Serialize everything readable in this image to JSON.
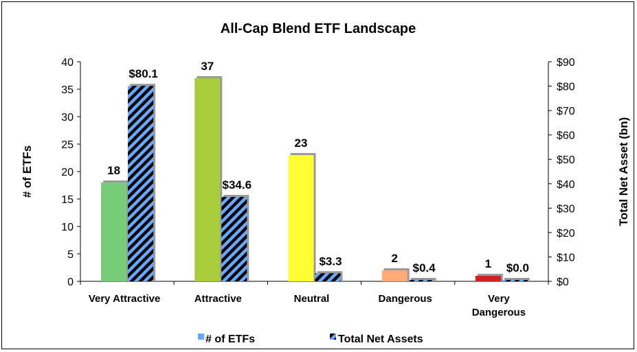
{
  "chart_data": {
    "type": "bar",
    "title": "All-Cap Blend ETF Landscape",
    "ylabel": "# of ETFs",
    "y2label": "Total Net Asset (bn)",
    "ylim": [
      0,
      40
    ],
    "y2lim": [
      0,
      90
    ],
    "yticks": [
      "0",
      "5",
      "10",
      "15",
      "20",
      "25",
      "30",
      "35",
      "40"
    ],
    "y2ticks": [
      "$0",
      "$10",
      "$20",
      "$30",
      "$40",
      "$50",
      "$60",
      "$70",
      "$80",
      "$90"
    ],
    "categories": [
      [
        "Very Attractive"
      ],
      [
        "Attractive"
      ],
      [
        "Neutral"
      ],
      [
        "Dangerous"
      ],
      [
        "Very",
        "Dangerous"
      ]
    ],
    "category_colors": [
      "#77cc77",
      "#a8cc3a",
      "#ffff33",
      "#ffaa77",
      "#cc2222"
    ],
    "series": [
      {
        "name": "# of ETFs",
        "axis": "left",
        "values": [
          18,
          37,
          23,
          2,
          1
        ],
        "labels": [
          "18",
          "37",
          "23",
          "2",
          "1"
        ],
        "legend_color": "#66aaff"
      },
      {
        "name": "Total Net Assets",
        "axis": "right",
        "values": [
          80.1,
          34.6,
          3.3,
          0.4,
          0.0
        ],
        "labels": [
          "$80.1",
          "$34.6",
          "$3.3",
          "$0.4",
          "$0.0"
        ],
        "pattern": "blue-black diagonal stripes"
      }
    ],
    "legend_position": "bottom",
    "grid": false
  }
}
